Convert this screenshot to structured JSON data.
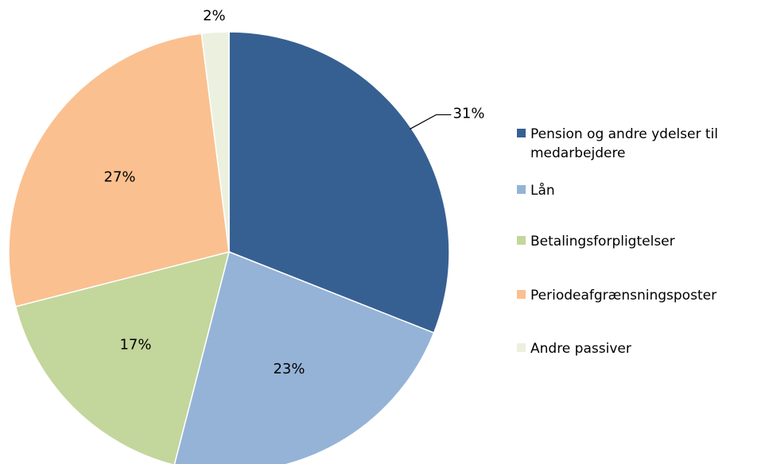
{
  "chart_data": {
    "type": "pie",
    "categories": [
      "Pension og andre ydelser til medarbejdere",
      "Lån",
      "Betalingsforpligtelser",
      "Periodeafgrænsningsposter",
      "Andre passiver"
    ],
    "values": [
      31,
      23,
      17,
      27,
      2
    ],
    "value_labels": [
      "31%",
      "23%",
      "17%",
      "27%",
      "2%"
    ],
    "colors": [
      "#376092",
      "#95b3d7",
      "#c3d69b",
      "#fac090",
      "#ebf1de"
    ],
    "legend": "right"
  }
}
